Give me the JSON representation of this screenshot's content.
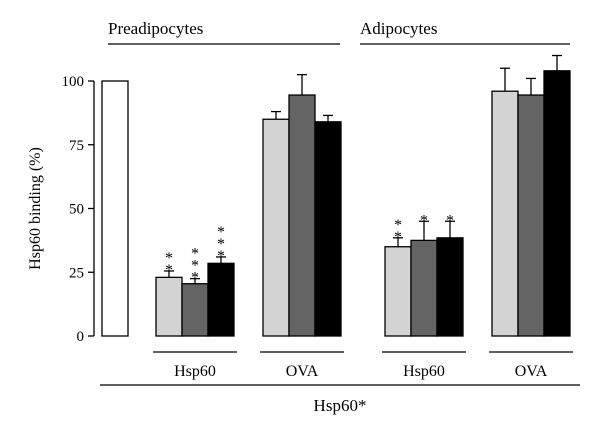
{
  "chart_data": {
    "type": "bar",
    "ylabel": "Hsp60 binding (%)",
    "ylim": [
      0,
      100
    ],
    "yticks": [
      0,
      25,
      50,
      75,
      100
    ],
    "groups": [
      "Preadipocytes",
      "Adipocytes"
    ],
    "subgroups": [
      "Hsp60",
      "OVA"
    ],
    "footer": "Hsp60*",
    "series_colors": [
      "#d3d3d3",
      "#646464",
      "#000000"
    ],
    "reference": {
      "group": "Preadipocytes",
      "value": 100,
      "color": "#ffffff"
    },
    "bars": [
      {
        "group": "Preadipocytes",
        "subgroup": "Hsp60",
        "series": 0,
        "value": 23,
        "error": 2.5,
        "sig": "**"
      },
      {
        "group": "Preadipocytes",
        "subgroup": "Hsp60",
        "series": 1,
        "value": 20.5,
        "error": 2,
        "sig": "***"
      },
      {
        "group": "Preadipocytes",
        "subgroup": "Hsp60",
        "series": 2,
        "value": 28.5,
        "error": 2.5,
        "sig": "***"
      },
      {
        "group": "Preadipocytes",
        "subgroup": "OVA",
        "series": 0,
        "value": 85,
        "error": 3,
        "sig": ""
      },
      {
        "group": "Preadipocytes",
        "subgroup": "OVA",
        "series": 1,
        "value": 94.5,
        "error": 8,
        "sig": ""
      },
      {
        "group": "Preadipocytes",
        "subgroup": "OVA",
        "series": 2,
        "value": 84,
        "error": 2.5,
        "sig": ""
      },
      {
        "group": "Adipocytes",
        "subgroup": "Hsp60",
        "series": 0,
        "value": 35,
        "error": 3.5,
        "sig": "**"
      },
      {
        "group": "Adipocytes",
        "subgroup": "Hsp60",
        "series": 1,
        "value": 37.5,
        "error": 7.5,
        "sig": "*"
      },
      {
        "group": "Adipocytes",
        "subgroup": "Hsp60",
        "series": 2,
        "value": 38.5,
        "error": 6.5,
        "sig": "*"
      },
      {
        "group": "Adipocytes",
        "subgroup": "OVA",
        "series": 0,
        "value": 96,
        "error": 9,
        "sig": ""
      },
      {
        "group": "Adipocytes",
        "subgroup": "OVA",
        "series": 1,
        "value": 94.5,
        "error": 6.5,
        "sig": ""
      },
      {
        "group": "Adipocytes",
        "subgroup": "OVA",
        "series": 2,
        "value": 104,
        "error": 6,
        "sig": ""
      }
    ]
  }
}
